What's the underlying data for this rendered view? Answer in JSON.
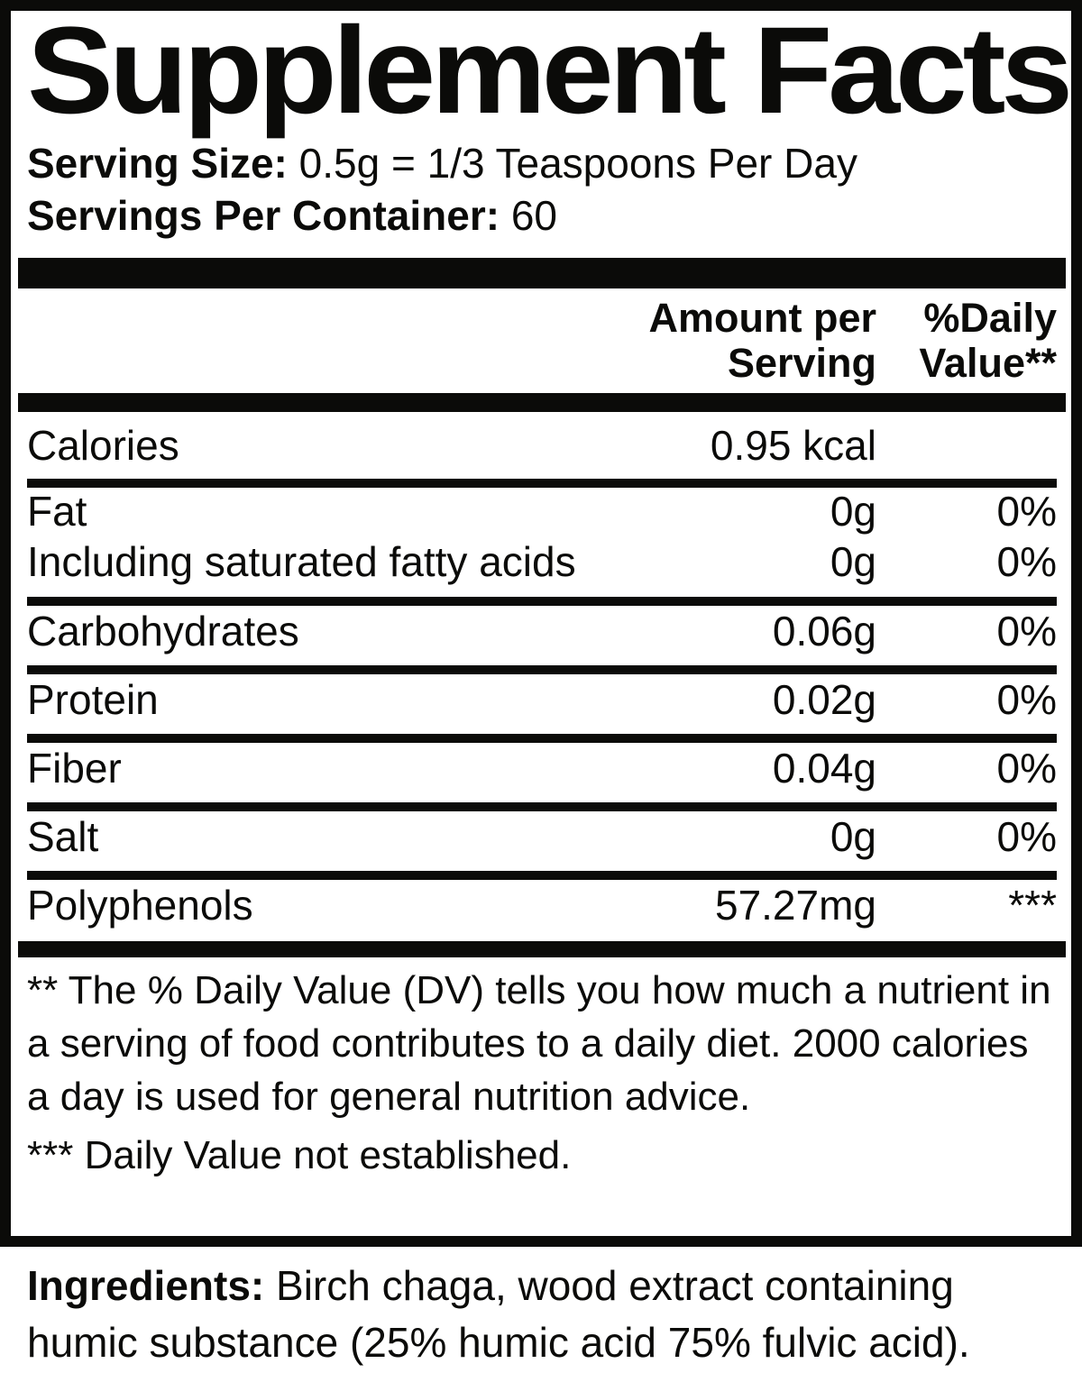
{
  "colors": {
    "ink": "#0b0b09",
    "paper": "#ffffff"
  },
  "title": "Supplement Facts",
  "serving_info": {
    "serving_size_label": "Serving Size:",
    "serving_size_value": " 0.5g = 1/3 Teaspoons Per Day",
    "servings_per_container_label": "Servings Per Container:",
    "servings_per_container_value": " 60"
  },
  "columns": {
    "amount_line1": "Amount per",
    "amount_line2": "Serving",
    "dv_line1": "%Daily",
    "dv_line2": "Value**"
  },
  "rows": [
    {
      "label": "Calories",
      "amount": "0.95 kcal",
      "dv": ""
    },
    {
      "label": "Fat",
      "amount": "0g",
      "dv": "0%"
    },
    {
      "label": "Including saturated fatty acids",
      "amount": "0g",
      "dv": "0%"
    },
    {
      "label": "Carbohydrates",
      "amount": "0.06g",
      "dv": "0%"
    },
    {
      "label": "Protein",
      "amount": "0.02g",
      "dv": "0%"
    },
    {
      "label": "Fiber",
      "amount": "0.04g",
      "dv": "0%"
    },
    {
      "label": "Salt",
      "amount": "0g",
      "dv": "0%"
    },
    {
      "label": "Polyphenols",
      "amount": "57.27mg",
      "dv": "***"
    }
  ],
  "footnotes": {
    "daily_value_note": "** The % Daily Value (DV) tells you how much a nutrient in a serving of food contributes to a daily diet. 2000 calories a day is used for general nutrition advice.",
    "not_established_note": "*** Daily Value not established."
  },
  "ingredients": {
    "label": "Ingredients:",
    "text": " Birch chaga, wood extract containing humic substance (25% humic acid 75% fulvic acid)."
  }
}
